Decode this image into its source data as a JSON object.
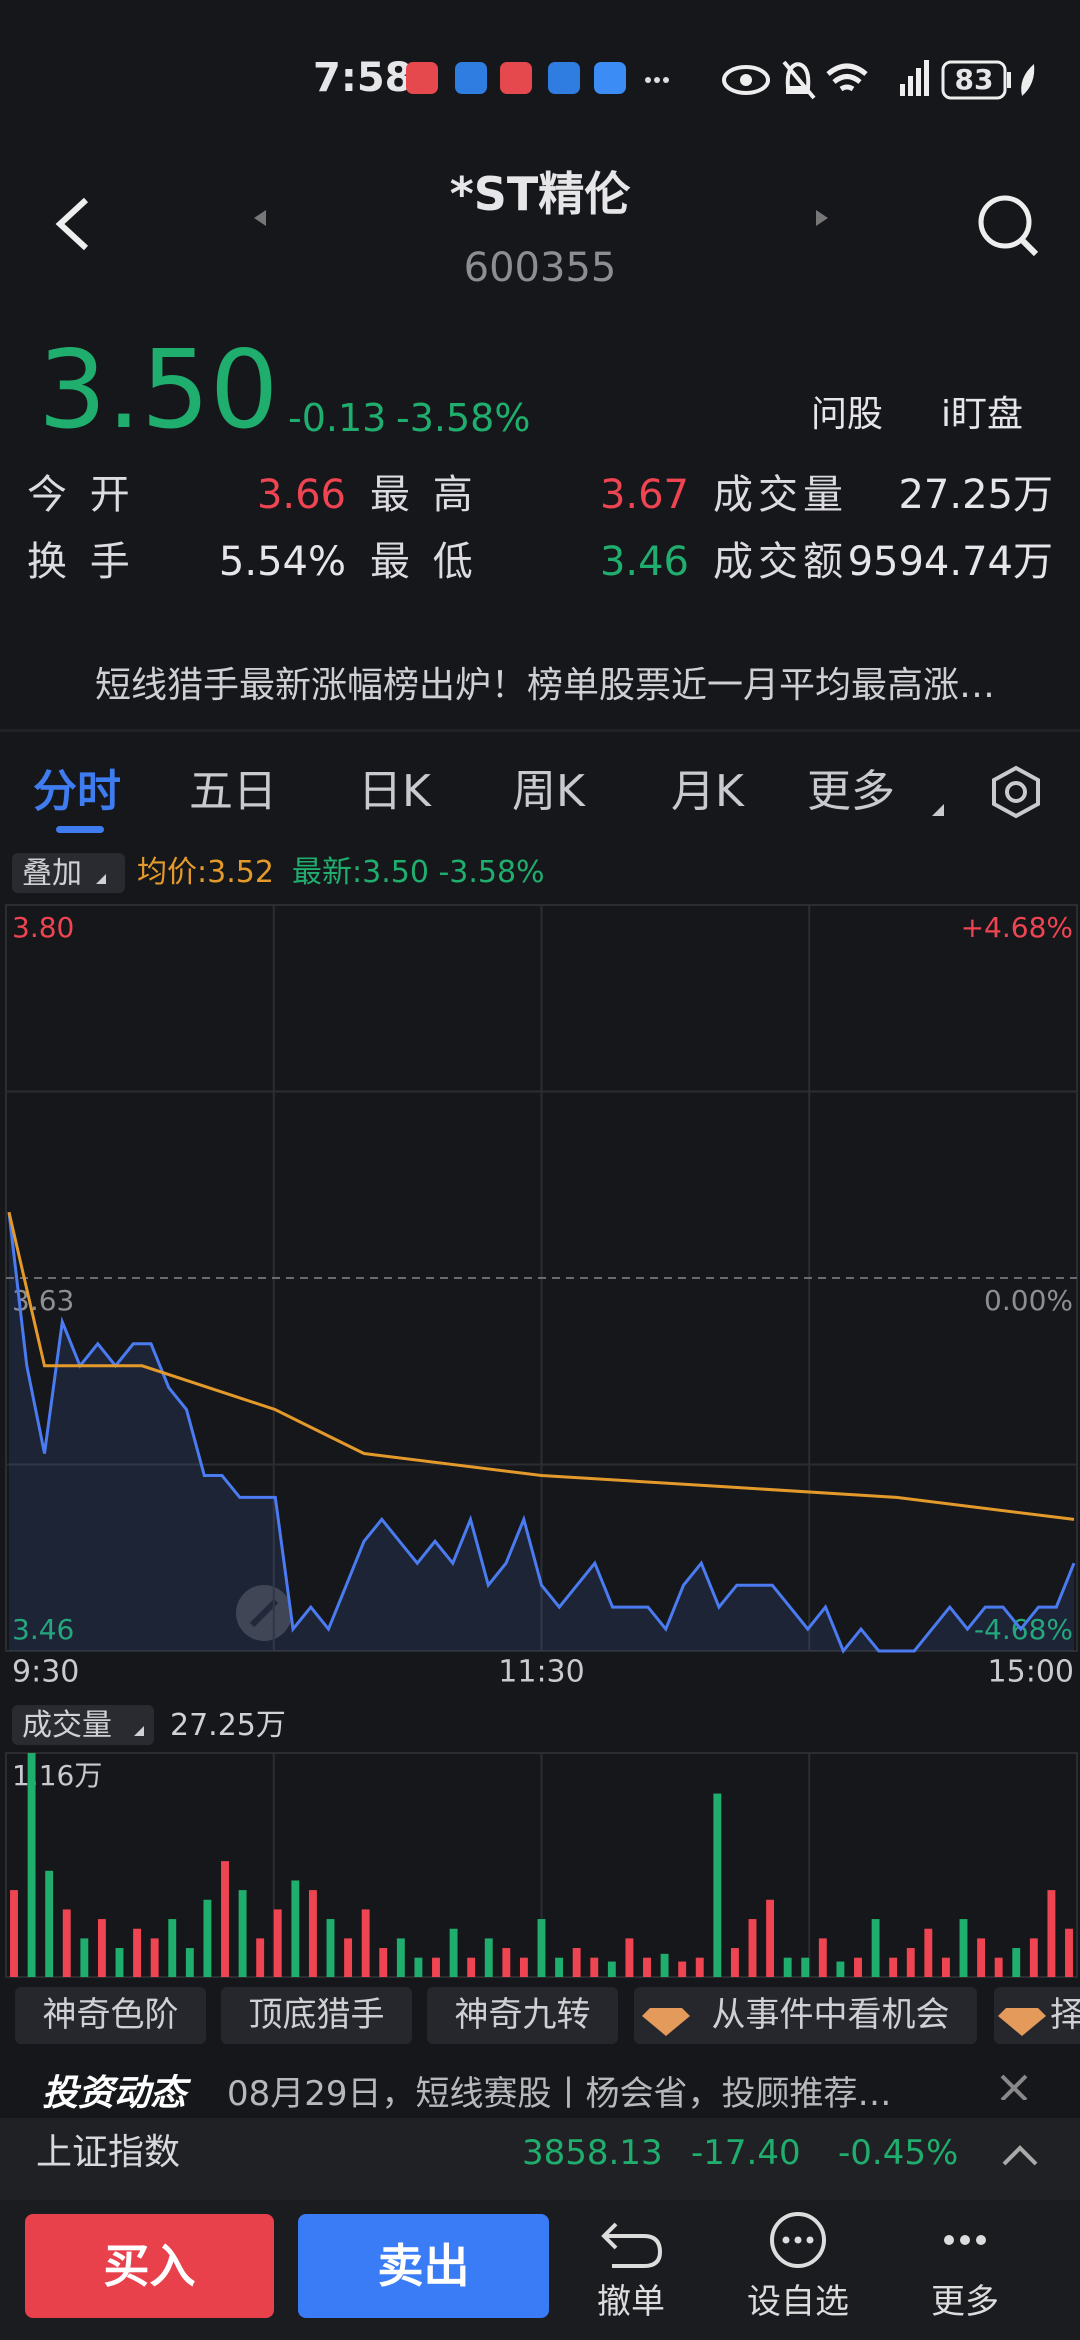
{
  "status_bar": {
    "time": "7:58",
    "battery": "83"
  },
  "header": {
    "title": "*ST精伦",
    "code": "600355"
  },
  "quote": {
    "price": "3.50",
    "change": "-0.13",
    "change_pct": "-3.58%",
    "actions": [
      "问股",
      "i盯盘"
    ]
  },
  "stats": [
    [
      {
        "label": "今 开",
        "value": "3.66"
      },
      {
        "label": "最 高",
        "value": "3.67"
      },
      {
        "label": "成交量",
        "value": "27.25万"
      }
    ],
    [
      {
        "label": "换 手",
        "value": "5.54%"
      },
      {
        "label": "最 低",
        "value": "3.46"
      },
      {
        "label": "成交额",
        "value": "9594.74万"
      }
    ]
  ],
  "news": {
    "text": "短线猎手最新涨幅榜出炉！榜单股票近一月平均最高涨…"
  },
  "tabs": [
    "分时",
    "五日",
    "日K",
    "周K",
    "月K",
    "更多"
  ],
  "legend": {
    "overlay": "叠加",
    "average": "均价:3.52",
    "latest": "最新:3.50 -3.58%"
  },
  "chart_data": [
    {
      "type": "line",
      "x": [
        0,
        4,
        8,
        12,
        16,
        20,
        24,
        28,
        32,
        36,
        40,
        44,
        48,
        52,
        56,
        60,
        64,
        68,
        72,
        76,
        80,
        84,
        88,
        92,
        96,
        100,
        104,
        108,
        112,
        116,
        120,
        124,
        128,
        132,
        136,
        140,
        144,
        148,
        152,
        156,
        160,
        164,
        168,
        172,
        176,
        180,
        184,
        188,
        192,
        196,
        200,
        204,
        208,
        212,
        216,
        220,
        224,
        228,
        232,
        236,
        240
      ],
      "series": [
        {
          "color": "#4a7bf0",
          "values": [
            3.66,
            3.59,
            3.55,
            3.61,
            3.59,
            3.6,
            3.59,
            3.6,
            3.6,
            3.58,
            3.57,
            3.54,
            3.54,
            3.53,
            3.53,
            3.53,
            3.47,
            3.48,
            3.47,
            3.49,
            3.51,
            3.52,
            3.51,
            3.5,
            3.51,
            3.5,
            3.52,
            3.49,
            3.5,
            3.52,
            3.49,
            3.48,
            3.49,
            3.5,
            3.48,
            3.48,
            3.48,
            3.47,
            3.49,
            3.5,
            3.48,
            3.49,
            3.49,
            3.49,
            3.48,
            3.47,
            3.48,
            3.46,
            3.47,
            3.46,
            3.46,
            3.46,
            3.47,
            3.48,
            3.47,
            3.48,
            3.48,
            3.47,
            3.48,
            3.48,
            3.5
          ]
        },
        {
          "color": "#e39a2b",
          "x": [
            0,
            8,
            30,
            45,
            60,
            70,
            80,
            120,
            160,
            200,
            240
          ],
          "values": [
            3.66,
            3.59,
            3.59,
            3.58,
            3.57,
            3.56,
            3.55,
            3.54,
            3.535,
            3.53,
            3.52
          ]
        }
      ],
      "xlim": [
        0,
        240
      ],
      "xticks": [
        {
          "value": 0,
          "label": "9:30"
        },
        {
          "value": 120,
          "label": "11:30"
        },
        {
          "value": 240,
          "label": "15:00"
        }
      ],
      "ylim": [
        3.46,
        3.8
      ],
      "yticks": [
        {
          "value": 3.8,
          "label": "3.80"
        },
        {
          "value": 3.63,
          "label": "3.63"
        },
        {
          "value": 3.46,
          "label": "3.46"
        }
      ],
      "y2lim": [
        -4.68,
        4.68
      ],
      "y2ticks": [
        {
          "value": 4.68,
          "label": "+4.68%"
        },
        {
          "value": 0,
          "label": "0.00%"
        },
        {
          "value": -4.68,
          "label": "-4.68%"
        }
      ],
      "up_color": "#ef4451",
      "down_color": "#1fae6d",
      "grid": true
    },
    {
      "type": "bar",
      "title": "成交量",
      "subtitle": "27.25万",
      "x": [
        0,
        4,
        8,
        12,
        16,
        20,
        24,
        28,
        32,
        36,
        40,
        44,
        48,
        52,
        56,
        60,
        64,
        68,
        72,
        76,
        80,
        84,
        88,
        92,
        96,
        100,
        104,
        108,
        112,
        116,
        120,
        124,
        128,
        132,
        136,
        140,
        144,
        148,
        152,
        156,
        160,
        164,
        168,
        172,
        176,
        180,
        184,
        188,
        192,
        196,
        200,
        204,
        208,
        212,
        216,
        220,
        224,
        228,
        232,
        236,
        240
      ],
      "values": [
        0.45,
        1.16,
        0.55,
        0.35,
        0.2,
        0.3,
        0.15,
        0.25,
        0.2,
        0.3,
        0.15,
        0.4,
        0.6,
        0.45,
        0.2,
        0.35,
        0.5,
        0.45,
        0.3,
        0.2,
        0.35,
        0.15,
        0.2,
        0.1,
        0.1,
        0.25,
        0.1,
        0.2,
        0.15,
        0.1,
        0.3,
        0.1,
        0.15,
        0.1,
        0.08,
        0.2,
        0.1,
        0.12,
        0.08,
        0.1,
        0.95,
        0.15,
        0.3,
        0.4,
        0.1,
        0.1,
        0.2,
        0.08,
        0.1,
        0.3,
        0.1,
        0.15,
        0.25,
        0.1,
        0.3,
        0.2,
        0.1,
        0.15,
        0.2,
        0.45,
        0.25
      ],
      "xlim": [
        0,
        240
      ],
      "ylim": [
        0,
        1.16
      ],
      "yticks": [
        {
          "value": 1.16,
          "label": "1.16万"
        }
      ],
      "up_color": "#ef4451",
      "down_color": "#1fae6d",
      "grid": true
    }
  ],
  "chips": [
    "神奇色阶",
    "顶底猎手",
    "神奇九转",
    "从事件中看机会",
    "择"
  ],
  "feed": {
    "badge": "投资动态",
    "text": "08月29日，短线赛股丨杨会省，投顾推荐…"
  },
  "index": {
    "name": "上证指数",
    "value": "3858.13",
    "change": "-17.40",
    "change_pct": "-0.45%"
  },
  "bottom": {
    "buy": "买入",
    "sell": "卖出",
    "items": [
      "撤单",
      "设自选",
      "更多"
    ]
  }
}
